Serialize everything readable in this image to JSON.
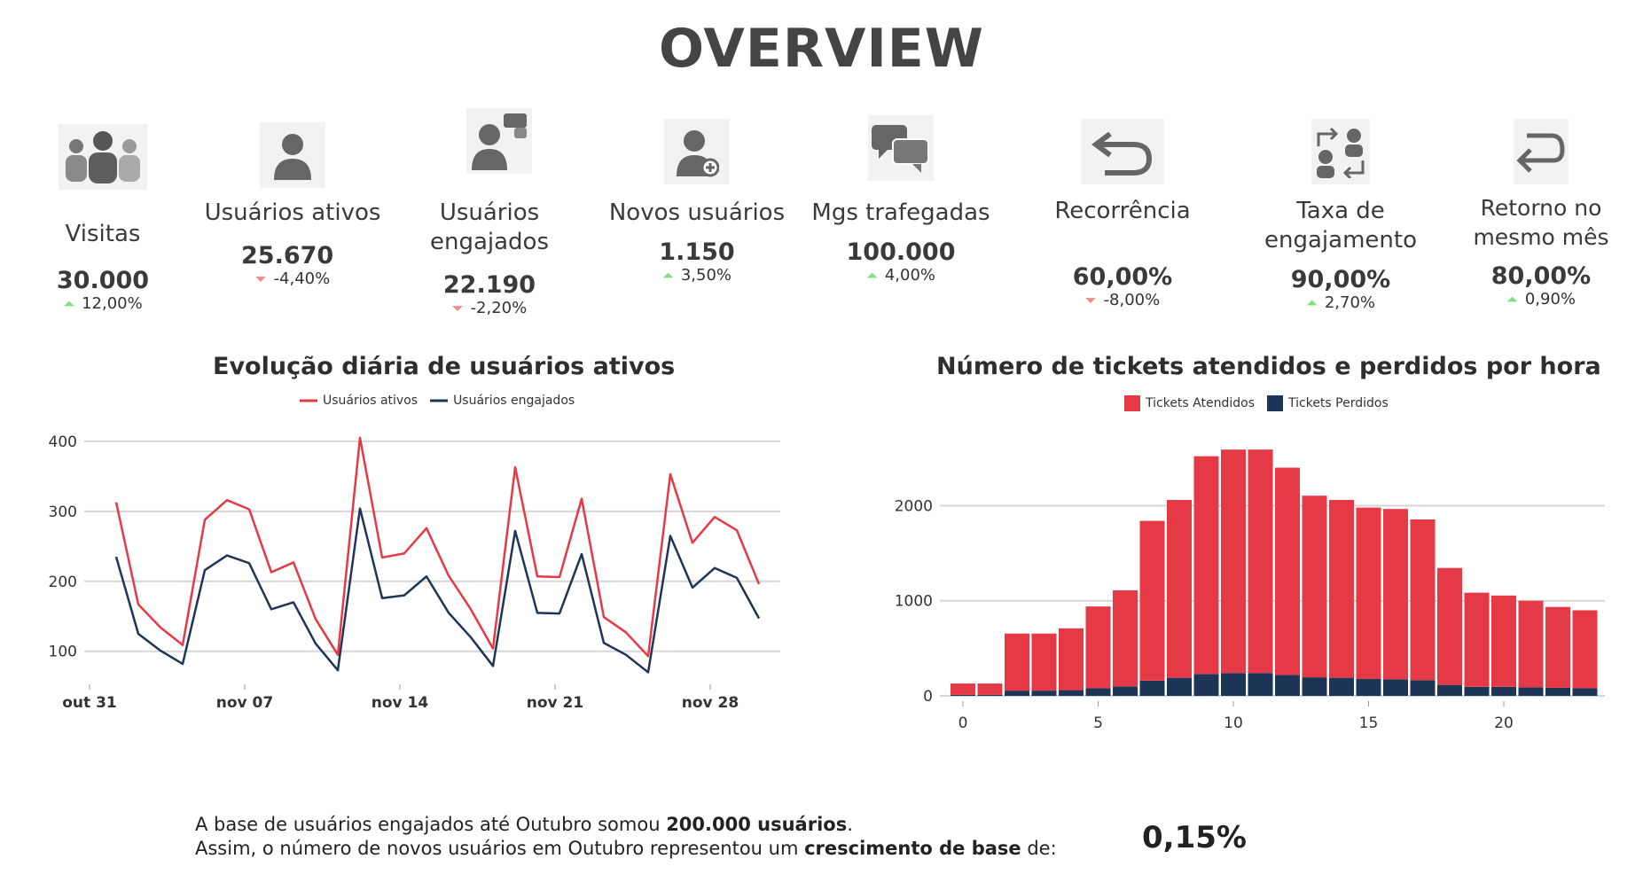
{
  "header": {
    "title": "OVERVIEW"
  },
  "kpis": [
    {
      "label": "Visitas",
      "value": "30.000",
      "delta": "12,00%",
      "trend": "up",
      "icon": "people-group-icon"
    },
    {
      "label": "Usuários ativos",
      "value": "25.670",
      "delta": "-4,40%",
      "trend": "down",
      "icon": "user-icon"
    },
    {
      "label": "Usuários engajados",
      "value": "22.190",
      "delta": "-2,20%",
      "trend": "down",
      "icon": "user-chat-icon"
    },
    {
      "label": "Novos usuários",
      "value": "1.150",
      "delta": "3,50%",
      "trend": "up",
      "icon": "add-user-icon"
    },
    {
      "label": "Mgs trafegadas",
      "value": "100.000",
      "delta": "4,00%",
      "trend": "up",
      "icon": "chat-bubbles-icon"
    },
    {
      "label": "Recorrência",
      "value": "60,00%",
      "delta": "-8,00%",
      "trend": "down",
      "icon": "return-arrow-icon"
    },
    {
      "label": "Taxa de engajamento",
      "value": "90,00%",
      "delta": "2,70%",
      "trend": "up",
      "icon": "exchange-users-icon"
    },
    {
      "label": "Retorno no mesmo mês",
      "value": "80,00%",
      "delta": "0,90%",
      "trend": "up",
      "icon": "u-turn-arrow-icon"
    }
  ],
  "colors": {
    "up": "#7ee07e",
    "down": "#f08a8a",
    "red": "#e63946",
    "navy": "#1d3557"
  },
  "chart_data": [
    {
      "type": "line",
      "title": "Evolução diária de usuários ativos",
      "x_ticks": [
        "out 31",
        "nov 07",
        "nov 14",
        "nov 21",
        "nov 28"
      ],
      "y_ticks": [
        "100",
        "200",
        "300",
        "400"
      ],
      "ylim": [
        68,
        410
      ],
      "x_start": "2022-11-01",
      "series": [
        {
          "name": "Usuários ativos",
          "color": "#e63946",
          "values": [
            313,
            167,
            134,
            109,
            288,
            316,
            303,
            213,
            227,
            146,
            95,
            405,
            234,
            240,
            276,
            208,
            160,
            104,
            363,
            207,
            206,
            318,
            149,
            127,
            93,
            353,
            255,
            292,
            273,
            196
          ]
        },
        {
          "name": "Usuários engajados",
          "color": "#1d3557",
          "values": [
            235,
            125,
            101,
            82,
            216,
            237,
            226,
            160,
            170,
            111,
            73,
            304,
            176,
            180,
            207,
            155,
            120,
            79,
            272,
            155,
            154,
            239,
            112,
            95,
            70,
            265,
            191,
            219,
            205,
            147
          ]
        }
      ],
      "grid": true,
      "legend": "top"
    },
    {
      "type": "bar",
      "title": "Número de tickets atendidos e perdidos por hora",
      "categories": [
        0,
        1,
        2,
        3,
        4,
        5,
        6,
        7,
        8,
        9,
        10,
        11,
        12,
        13,
        14,
        15,
        16,
        17,
        18,
        19,
        20,
        21,
        22,
        23
      ],
      "x_ticks": [
        "0",
        "5",
        "10",
        "15",
        "20"
      ],
      "y_ticks": [
        "0",
        "1000",
        "2000"
      ],
      "ylim": [
        0,
        2750
      ],
      "stacked": true,
      "series": [
        {
          "name": "Tickets Atendidos",
          "color": "#e63946",
          "values": [
            120,
            120,
            600,
            600,
            650,
            860,
            1010,
            1680,
            1870,
            2290,
            2350,
            2350,
            2180,
            1910,
            1870,
            1800,
            1790,
            1690,
            1230,
            990,
            960,
            910,
            850,
            820
          ]
        },
        {
          "name": "Tickets Perdidos",
          "color": "#1d3557",
          "values": [
            10,
            10,
            55,
            55,
            60,
            80,
            100,
            160,
            190,
            230,
            240,
            240,
            220,
            195,
            190,
            180,
            175,
            165,
            115,
            95,
            95,
            90,
            85,
            80
          ]
        }
      ],
      "grid": true,
      "legend": "top"
    }
  ],
  "footer": {
    "line1_a": "A base de usuários engajados até Outubro somou ",
    "line1_b": "200.000  usuários",
    "line1_c": ".",
    "line2_a": "Assim, o número de novos usuários em Outubro representou um ",
    "line2_b": "crescimento de base",
    "line2_c": " de:",
    "growth": "0,15%"
  }
}
